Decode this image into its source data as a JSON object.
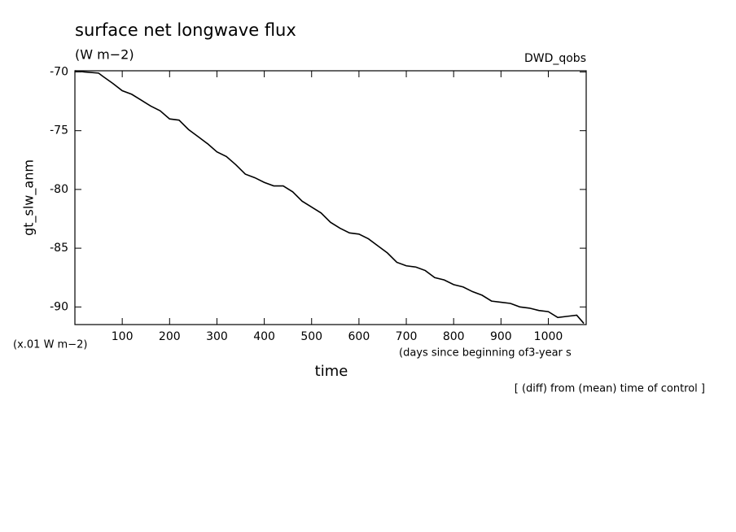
{
  "chart_data": {
    "type": "line",
    "title": "surface net longwave flux",
    "subtitle": "(W m−2)",
    "annotation_right": "DWD_qobs",
    "ylabel": "gt_slw_anm",
    "yunits": "(x.01 W m−2)",
    "xunits": "(days since beginning of3-year s",
    "xlabel": "time",
    "footnote": "[ (diff) from (mean) time of control ]",
    "x": [
      0,
      20,
      50,
      60,
      80,
      100,
      120,
      140,
      160,
      180,
      200,
      220,
      240,
      260,
      280,
      300,
      320,
      340,
      360,
      380,
      400,
      420,
      440,
      460,
      480,
      500,
      520,
      540,
      560,
      580,
      600,
      620,
      640,
      660,
      680,
      700,
      720,
      740,
      760,
      780,
      800,
      820,
      840,
      860,
      880,
      900,
      920,
      940,
      960,
      980,
      1000,
      1020,
      1040,
      1060,
      1075
    ],
    "series": [
      {
        "color": "#000000",
        "values": [
          -69.9,
          -70.0,
          -70.1,
          -70.4,
          -70.97,
          -71.6,
          -71.9,
          -72.4,
          -72.9,
          -73.3,
          -74.0,
          -74.1,
          -74.9,
          -75.5,
          -76.1,
          -76.8,
          -77.2,
          -77.9,
          -78.7,
          -79.0,
          -79.4,
          -79.7,
          -79.7,
          -80.2,
          -81.0,
          -81.5,
          -82.0,
          -82.8,
          -83.3,
          -83.7,
          -83.8,
          -84.2,
          -84.8,
          -85.4,
          -86.2,
          -86.5,
          -86.6,
          -86.9,
          -87.5,
          -87.7,
          -88.1,
          -88.3,
          -88.7,
          -89.0,
          -89.5,
          -89.6,
          -89.7,
          -90.0,
          -90.1,
          -90.3,
          -90.4,
          -90.9,
          -90.8,
          -90.7,
          -91.4
        ]
      }
    ],
    "xlim": [
      0,
      1080
    ],
    "ylim": [
      -91.5,
      -69.9
    ],
    "xticks": [
      100,
      200,
      300,
      400,
      500,
      600,
      700,
      800,
      900,
      1000
    ],
    "yticks": [
      -70,
      -75,
      -80,
      -85,
      -90
    ]
  }
}
